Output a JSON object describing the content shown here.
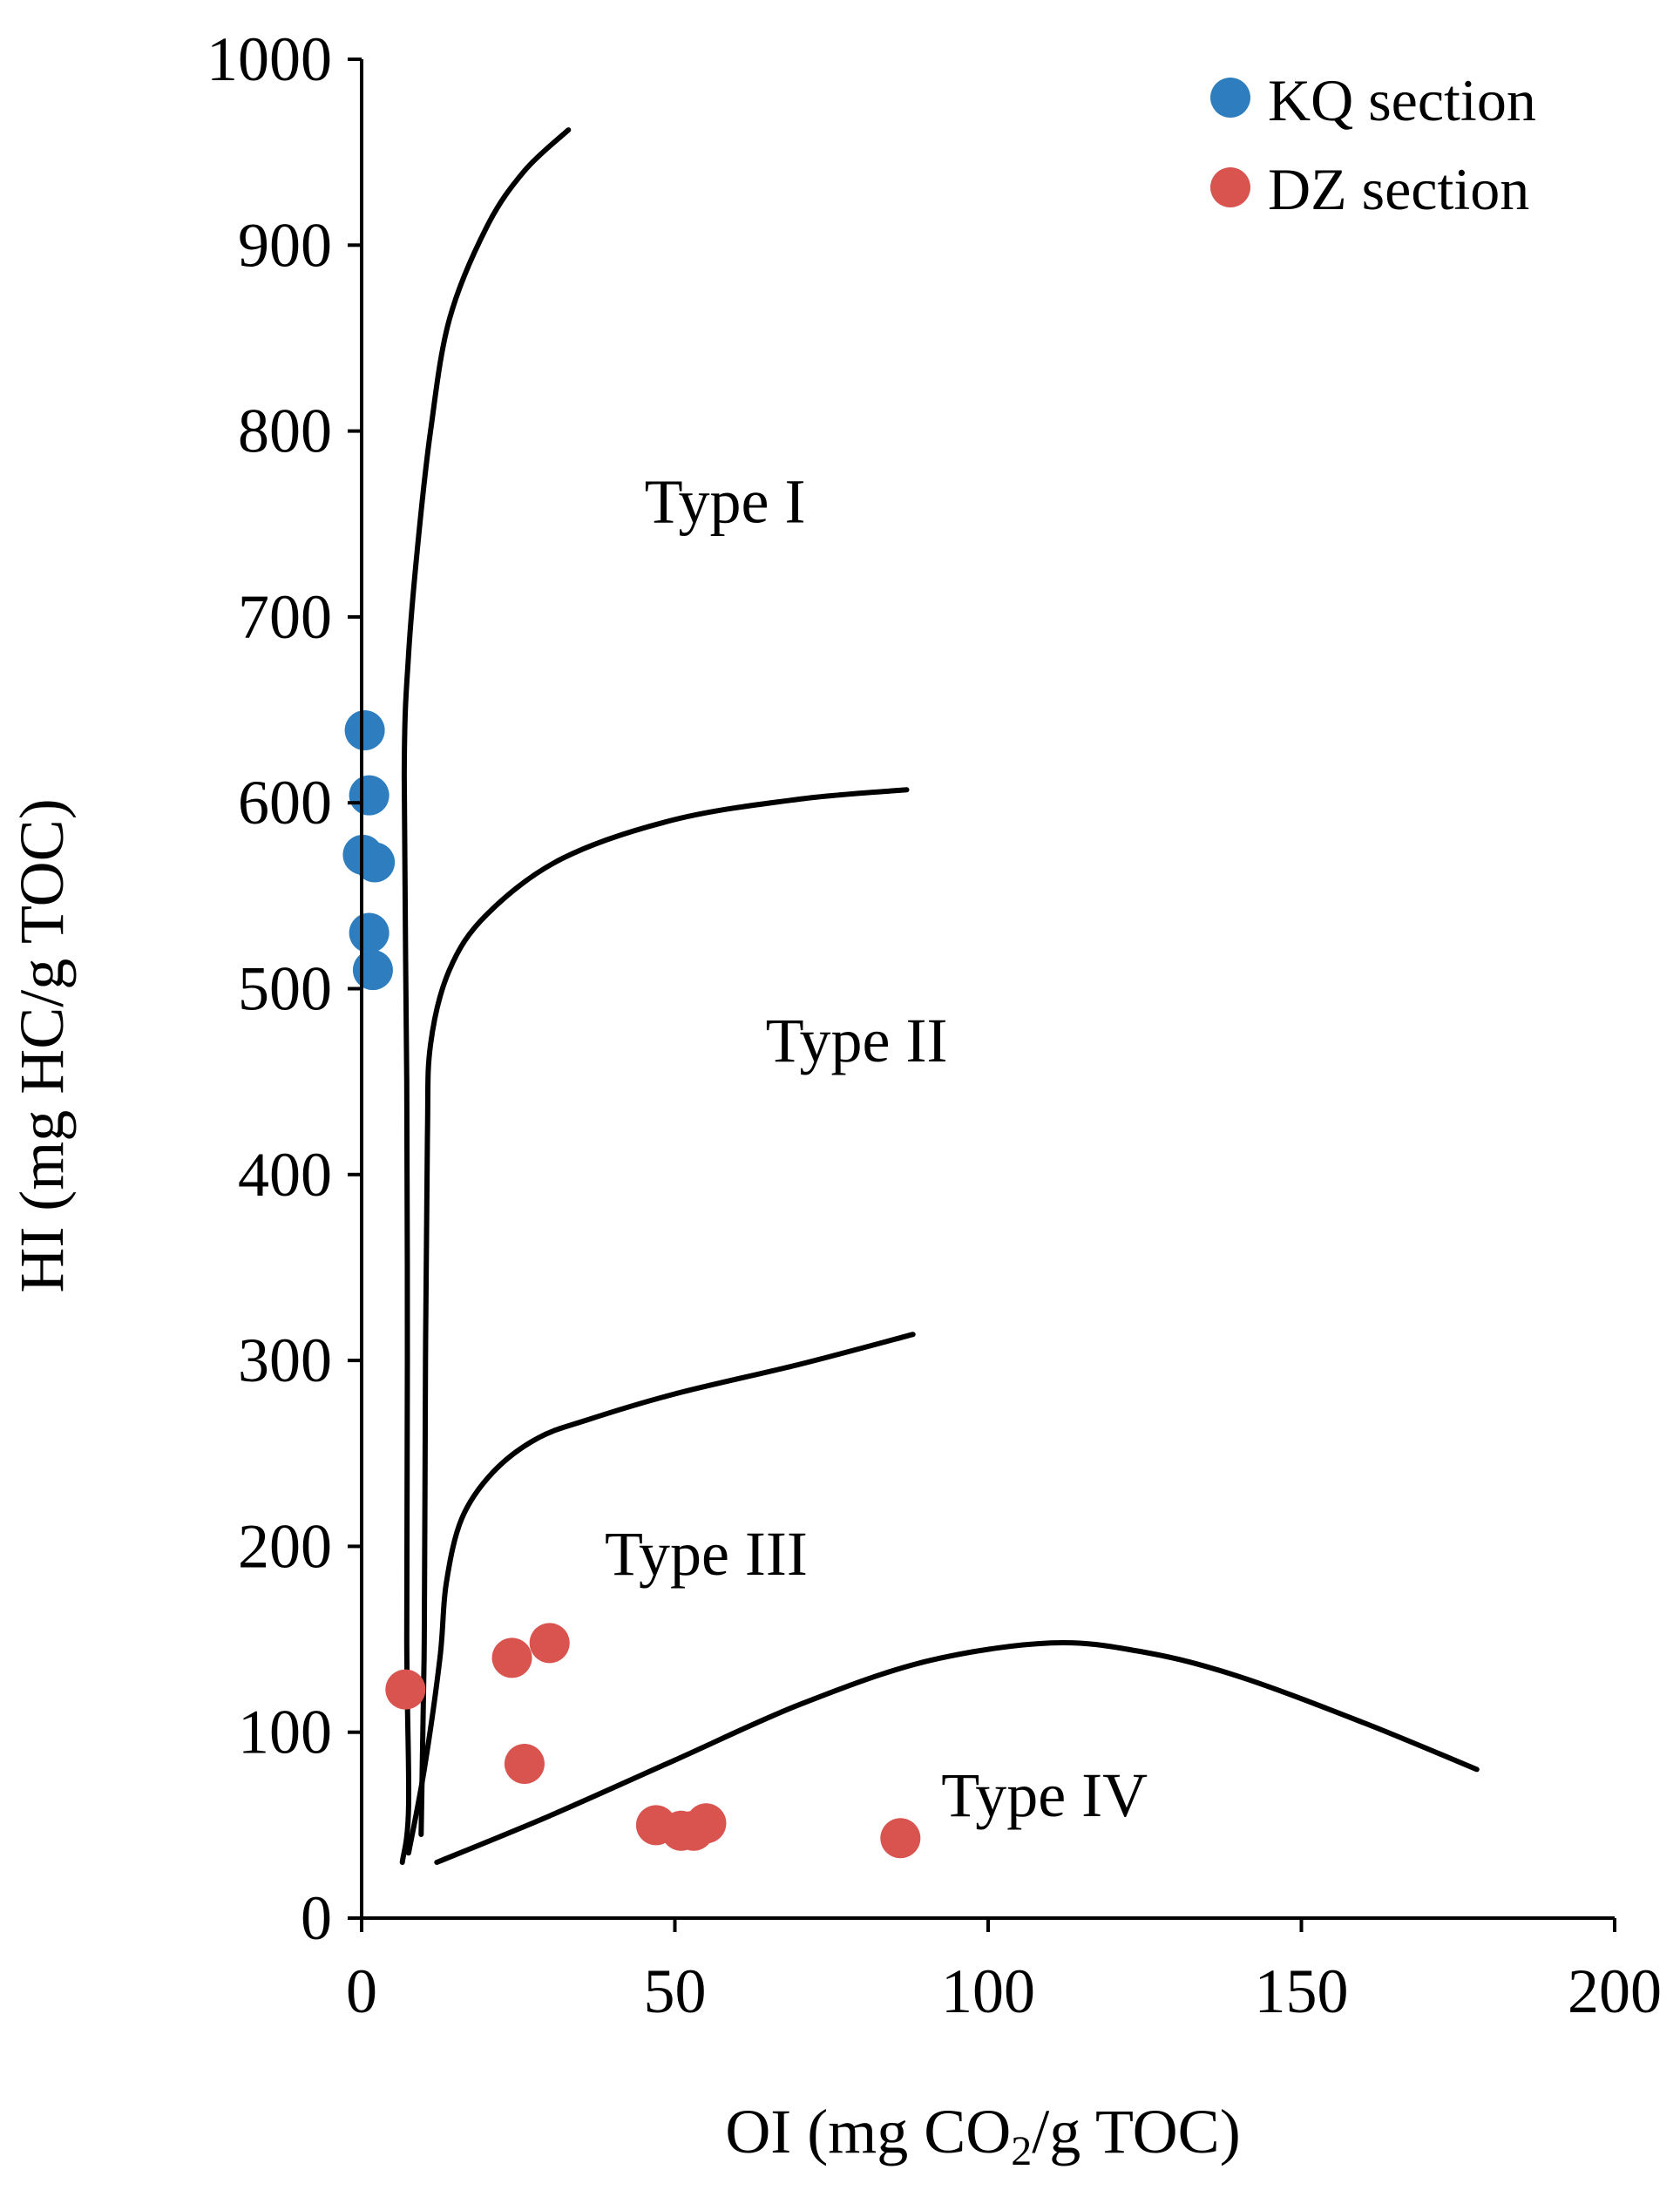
{
  "chart_data": {
    "type": "scatter",
    "title": "",
    "xlabel_parts": {
      "before": "OI (mg CO",
      "sub": "2",
      "after": "/g TOC)"
    },
    "ylabel": "HI (mg HC/g TOC)",
    "xlim": [
      0,
      200
    ],
    "ylim": [
      0,
      1000
    ],
    "xticks": [
      0,
      50,
      100,
      150,
      200
    ],
    "yticks": [
      0,
      100,
      200,
      300,
      400,
      500,
      600,
      700,
      800,
      900,
      1000
    ],
    "xtick_labels": [
      "0",
      "50",
      "100",
      "150",
      "200"
    ],
    "ytick_labels": [
      "0",
      "100",
      "200",
      "300",
      "400",
      "500",
      "600",
      "700",
      "800",
      "900",
      "1000"
    ],
    "grid": false,
    "legend_position": "top-right",
    "series": [
      {
        "name": "KQ section",
        "color": "#2e7ebf",
        "points": [
          [
            0.5,
            639
          ],
          [
            1.2,
            604
          ],
          [
            0.2,
            572
          ],
          [
            2.1,
            568
          ],
          [
            1.2,
            530
          ],
          [
            1.8,
            510
          ]
        ]
      },
      {
        "name": "DZ section",
        "color": "#d9534f",
        "points": [
          [
            7,
            123
          ],
          [
            24,
            140
          ],
          [
            30,
            148
          ],
          [
            26,
            83
          ],
          [
            47,
            50
          ],
          [
            51,
            47
          ],
          [
            53,
            47
          ],
          [
            55,
            51
          ],
          [
            86,
            43
          ]
        ]
      }
    ],
    "curves": [
      {
        "name": "type-i-boundary",
        "points": [
          [
            6.5,
            30
          ],
          [
            7.5,
            60
          ],
          [
            7.2,
            150
          ],
          [
            7.3,
            300
          ],
          [
            7.2,
            450
          ],
          [
            6.8,
            615
          ],
          [
            7.5,
            680
          ],
          [
            9,
            740
          ],
          [
            11,
            800
          ],
          [
            14,
            860
          ],
          [
            20,
            910
          ],
          [
            26,
            940
          ],
          [
            33,
            962
          ]
        ]
      },
      {
        "name": "type-ii-boundary",
        "points": [
          [
            9.5,
            45
          ],
          [
            10,
            150
          ],
          [
            10.2,
            300
          ],
          [
            10.5,
            420
          ],
          [
            11,
            470
          ],
          [
            14,
            510
          ],
          [
            20,
            540
          ],
          [
            32,
            570
          ],
          [
            50,
            591
          ],
          [
            70,
            602
          ],
          [
            87,
            607
          ]
        ]
      },
      {
        "name": "type-iii-boundary",
        "points": [
          [
            7.5,
            35
          ],
          [
            10,
            80
          ],
          [
            12.5,
            140
          ],
          [
            13.5,
            180
          ],
          [
            16,
            215
          ],
          [
            21,
            240
          ],
          [
            28,
            258
          ],
          [
            36,
            268
          ],
          [
            50,
            282
          ],
          [
            70,
            298
          ],
          [
            88,
            314
          ]
        ]
      },
      {
        "name": "type-iv-boundary",
        "points": [
          [
            12,
            30
          ],
          [
            30,
            55
          ],
          [
            50,
            85
          ],
          [
            70,
            115
          ],
          [
            90,
            138
          ],
          [
            110,
            148
          ],
          [
            125,
            143
          ],
          [
            140,
            130
          ],
          [
            160,
            105
          ],
          [
            178,
            80
          ]
        ]
      }
    ],
    "annotations": [
      {
        "text": "Type I",
        "x": 58,
        "y": 762
      },
      {
        "text": "Type II",
        "x": 79,
        "y": 472
      },
      {
        "text": "Type III",
        "x": 55,
        "y": 196
      },
      {
        "text": "Type IV",
        "x": 109,
        "y": 66
      }
    ]
  }
}
